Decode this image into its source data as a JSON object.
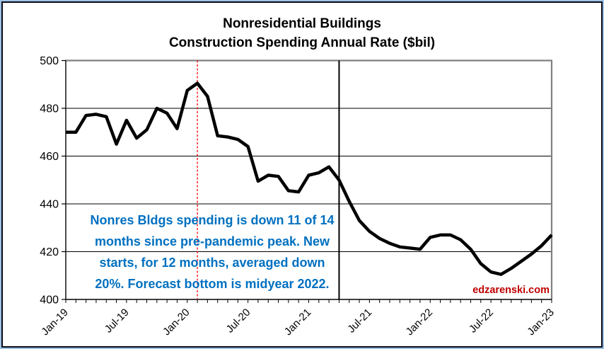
{
  "title": {
    "line1": "Nonresidential Buildings",
    "line2": "Construction Spending Annual Rate ($bil)"
  },
  "annotation": {
    "color": "#0070C0",
    "lines": [
      "Nonres Bldgs spending is down 11 of 14",
      "months since pre-pandemic peak. New",
      "starts, for 12 months, averaged down",
      "20%. Forecast bottom is midyear 2022."
    ]
  },
  "watermark": {
    "text": "edzarenski.com",
    "color": "#C00000"
  },
  "colors": {
    "series": "#000000",
    "gridline": "#000000",
    "axis": "#000000",
    "plot_border": "#808080",
    "prepandemic_vline": "#FF0000",
    "forecast_vline": "#000000",
    "frame_outer": "#9DC3E6",
    "frame_inner": "#0b0b14"
  },
  "chart_data": {
    "type": "line",
    "title": "Nonresidential Buildings Construction Spending Annual Rate ($bil)",
    "xlabel": "",
    "ylabel": "",
    "ylim": [
      400,
      500
    ],
    "yticks": [
      400,
      420,
      440,
      460,
      480,
      500
    ],
    "grid": "horizontal",
    "legend": "none",
    "x": [
      "Jan-19",
      "Feb-19",
      "Mar-19",
      "Apr-19",
      "May-19",
      "Jun-19",
      "Jul-19",
      "Aug-19",
      "Sep-19",
      "Oct-19",
      "Nov-19",
      "Dec-19",
      "Jan-20",
      "Feb-20",
      "Mar-20",
      "Apr-20",
      "May-20",
      "Jun-20",
      "Jul-20",
      "Aug-20",
      "Sep-20",
      "Oct-20",
      "Nov-20",
      "Dec-20",
      "Jan-21",
      "Feb-21",
      "Mar-21",
      "Apr-21",
      "May-21",
      "Jun-21",
      "Jul-21",
      "Aug-21",
      "Sep-21",
      "Oct-21",
      "Nov-21",
      "Dec-21",
      "Jan-22",
      "Feb-22",
      "Mar-22",
      "Apr-22",
      "May-22",
      "Jun-22",
      "Jul-22",
      "Aug-22",
      "Sep-22",
      "Oct-22",
      "Nov-22",
      "Dec-22",
      "Jan-23"
    ],
    "xtick_labels_shown": [
      "Jan-19",
      "Jul-19",
      "Jan-20",
      "Jul-20",
      "Jan-21",
      "Jul-21",
      "Jan-22",
      "Jul-22",
      "Jan-23"
    ],
    "series": [
      {
        "name": "Nonres Bldgs Construction Spending Annual Rate ($bil)",
        "color": "#000000",
        "values": [
          470,
          470,
          477,
          477.5,
          476.5,
          465,
          475,
          467.5,
          471,
          480,
          478,
          471.5,
          487.5,
          490.5,
          485,
          468.5,
          468,
          467,
          464,
          449.5,
          452,
          451.5,
          445.5,
          445,
          452,
          453,
          455.5,
          450,
          441,
          433,
          428.5,
          425.5,
          423.5,
          422,
          421.5,
          421,
          426,
          427,
          427,
          425,
          421,
          415,
          411.5,
          410.5,
          413,
          416,
          419,
          422.5,
          427
        ]
      }
    ],
    "vlines": [
      {
        "month": "Feb-20",
        "style": "dashed",
        "color": "#FF0000"
      },
      {
        "month": "Apr-21",
        "style": "solid",
        "color": "#000000"
      }
    ]
  }
}
